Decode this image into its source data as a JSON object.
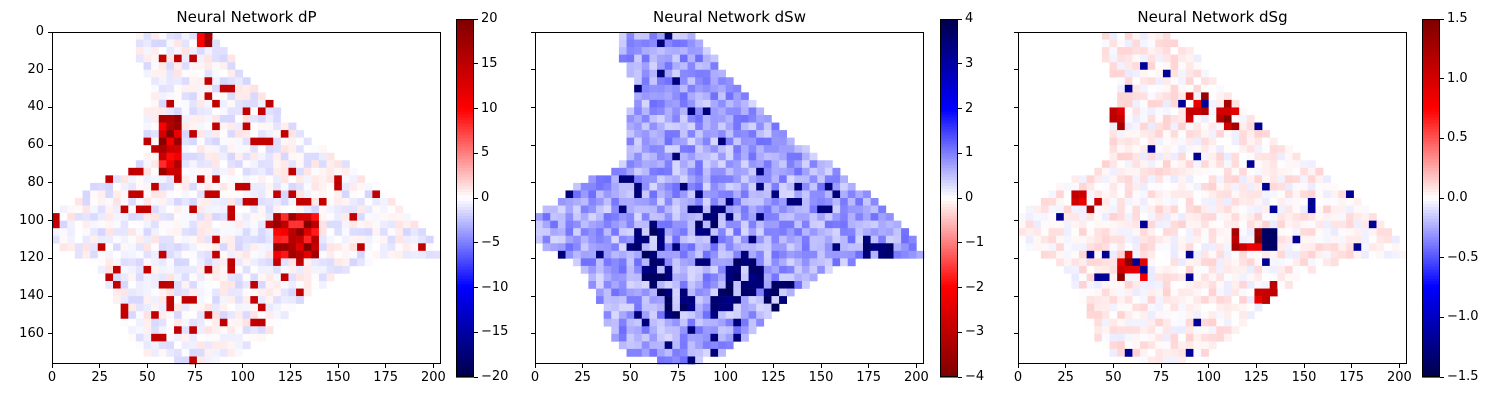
{
  "chart_data": [
    {
      "type": "heatmap",
      "title": "Neural Network dP",
      "colormap": "seismic",
      "xticks": [
        "0",
        "25",
        "50",
        "75",
        "100",
        "125",
        "150",
        "175",
        "200"
      ],
      "yticks": [
        "0",
        "20",
        "40",
        "60",
        "80",
        "100",
        "120",
        "140",
        "160"
      ],
      "xlim": [
        0,
        204
      ],
      "ylim": [
        176,
        0
      ],
      "color_range": [
        -20,
        20
      ],
      "colorbar_ticks": [
        "20",
        "15",
        "10",
        "5",
        "0",
        "−5",
        "−10",
        "−15",
        "−20"
      ],
      "y_tick_labels_shown": true,
      "grid": false
    },
    {
      "type": "heatmap",
      "title": "Neural Network dSw",
      "colormap": "seismic_r",
      "xticks": [
        "0",
        "25",
        "50",
        "75",
        "100",
        "125",
        "150",
        "175",
        "200"
      ],
      "yticks": [
        "0",
        "20",
        "40",
        "60",
        "80",
        "100",
        "120",
        "140",
        "160"
      ],
      "xlim": [
        0,
        204
      ],
      "ylim": [
        176,
        0
      ],
      "color_range": [
        -4,
        4
      ],
      "colorbar_ticks": [
        "4",
        "3",
        "2",
        "1",
        "0",
        "−1",
        "−2",
        "−3",
        "−4"
      ],
      "y_tick_labels_shown": false,
      "grid": false
    },
    {
      "type": "heatmap",
      "title": "Neural Network dSg",
      "colormap": "seismic",
      "xticks": [
        "0",
        "25",
        "50",
        "75",
        "100",
        "125",
        "150",
        "175",
        "200"
      ],
      "yticks": [
        "0",
        "20",
        "40",
        "60",
        "80",
        "100",
        "120",
        "140",
        "160"
      ],
      "xlim": [
        0,
        204
      ],
      "ylim": [
        176,
        0
      ],
      "color_range": [
        -1.5,
        1.5
      ],
      "colorbar_ticks": [
        "1.5",
        "1.0",
        "0.5",
        "0.0",
        "−0.5",
        "−1.0",
        "−1.5"
      ],
      "y_tick_labels_shown": false,
      "grid": false
    }
  ]
}
